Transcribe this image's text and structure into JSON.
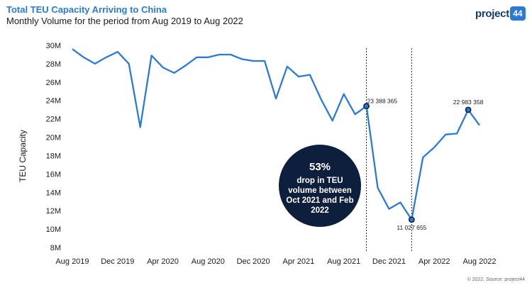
{
  "header": {
    "title": "Total TEU Capacity Arriving to China",
    "subtitle": "Monthly Volume for the period from Aug 2019 to Aug 2022"
  },
  "logo": {
    "text": "project",
    "badge": "44"
  },
  "footer": {
    "source": "© 2022, Source: project44"
  },
  "chart_data": {
    "type": "line",
    "ylabel": "TEU Capacity",
    "y_ticks": [
      "8M",
      "10M",
      "12M",
      "14M",
      "16M",
      "18M",
      "20M",
      "22M",
      "24M",
      "26M",
      "28M",
      "30M"
    ],
    "y_tick_values": [
      8000000,
      10000000,
      12000000,
      14000000,
      16000000,
      18000000,
      20000000,
      22000000,
      24000000,
      26000000,
      28000000,
      30000000
    ],
    "ylim": [
      8000000,
      30000000
    ],
    "x_tick_labels": [
      "Aug 2019",
      "Dec 2019",
      "Apr 2020",
      "Aug 2020",
      "Dec 2020",
      "Apr 2021",
      "Aug 2021",
      "Dec 2021",
      "Apr 2022",
      "Aug 2022"
    ],
    "x_tick_months": [
      "2019-08",
      "2019-12",
      "2020-04",
      "2020-08",
      "2020-12",
      "2021-04",
      "2021-08",
      "2021-12",
      "2022-04",
      "2022-08"
    ],
    "x_domain": [
      "2019-08",
      "2022-08"
    ],
    "grid": false,
    "color": "#2b7bd6",
    "series": [
      {
        "x": [
          "2019-08",
          "2019-09",
          "2019-10",
          "2019-11",
          "2019-12",
          "2020-01",
          "2020-02",
          "2020-03",
          "2020-04",
          "2020-05",
          "2020-06",
          "2020-07",
          "2020-08",
          "2020-09",
          "2020-10",
          "2020-11",
          "2020-12",
          "2021-01",
          "2021-02",
          "2021-03",
          "2021-04",
          "2021-05",
          "2021-06",
          "2021-07",
          "2021-08",
          "2021-09",
          "2021-10",
          "2021-11",
          "2021-12",
          "2022-01",
          "2022-02",
          "2022-03",
          "2022-04",
          "2022-05",
          "2022-06",
          "2022-07",
          "2022-08"
        ],
        "y": [
          29600000,
          28700000,
          28000000,
          28700000,
          29300000,
          28000000,
          21100000,
          28900000,
          27600000,
          27000000,
          27800000,
          28700000,
          28700000,
          29000000,
          29000000,
          28500000,
          28300000,
          28300000,
          24200000,
          27700000,
          26600000,
          26800000,
          24100000,
          21800000,
          24700000,
          22500000,
          23388365,
          14500000,
          12200000,
          12900000,
          11027655,
          17800000,
          18900000,
          20300000,
          20400000,
          22983358,
          21300000
        ]
      }
    ],
    "annotations": {
      "start_label": "23 388 365",
      "low_label": "11 027 655",
      "end_label": "22 983 358",
      "range_start": "2021-10",
      "range_end": "2022-02",
      "highlight_point": "2022-07",
      "callout_percent": "53%",
      "callout_text": [
        "drop in TEU",
        "volume between",
        "Oct 2021 and Feb",
        "2022"
      ],
      "callout_color": "#0e1f3d"
    }
  }
}
